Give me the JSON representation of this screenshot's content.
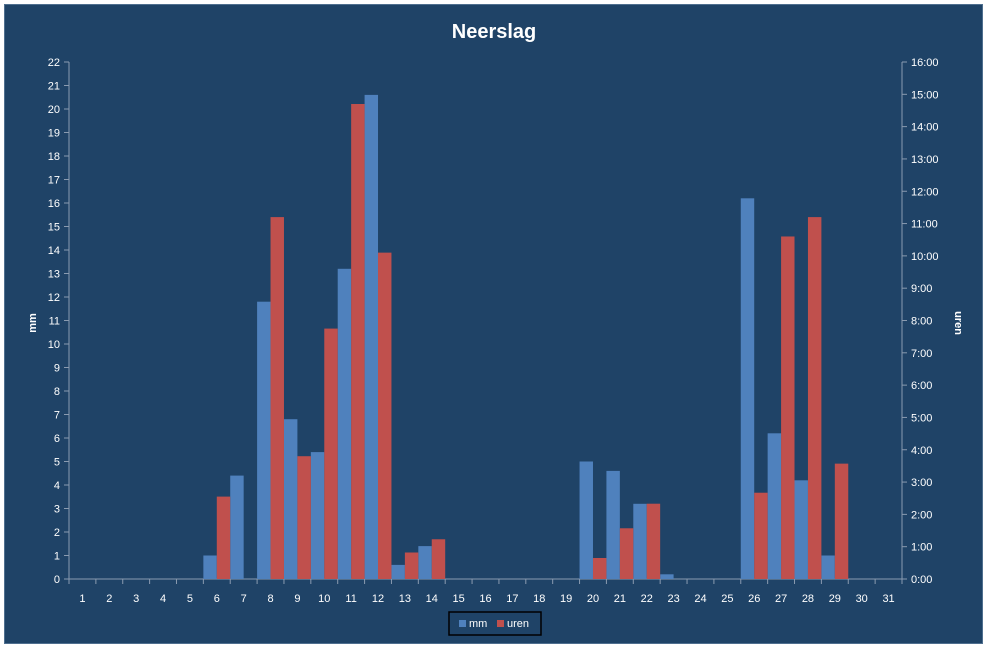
{
  "chart_data": {
    "type": "bar",
    "title": "Neerslag",
    "xlabel": "",
    "ylabel": "mm",
    "y2label": "uren",
    "categories": [
      "1",
      "2",
      "3",
      "4",
      "5",
      "6",
      "7",
      "8",
      "9",
      "10",
      "11",
      "12",
      "13",
      "14",
      "15",
      "16",
      "17",
      "18",
      "19",
      "20",
      "21",
      "22",
      "23",
      "24",
      "25",
      "26",
      "27",
      "28",
      "29",
      "30",
      "31"
    ],
    "ylim": [
      0,
      22
    ],
    "y_ticks": [
      "0",
      "1",
      "2",
      "3",
      "4",
      "5",
      "6",
      "7",
      "8",
      "9",
      "10",
      "11",
      "12",
      "13",
      "14",
      "15",
      "16",
      "17",
      "18",
      "19",
      "20",
      "21",
      "22"
    ],
    "y2lim": [
      0,
      16
    ],
    "y2_ticks": [
      "0:00",
      "1:00",
      "2:00",
      "3:00",
      "4:00",
      "5:00",
      "6:00",
      "7:00",
      "8:00",
      "9:00",
      "10:00",
      "11:00",
      "12:00",
      "13:00",
      "14:00",
      "15:00",
      "16:00"
    ],
    "series": [
      {
        "name": "mm",
        "axis": "left",
        "color": "#4f81bd",
        "values": [
          0,
          0,
          0,
          0,
          0,
          1.0,
          4.4,
          11.8,
          6.8,
          5.4,
          13.2,
          20.6,
          0.6,
          1.4,
          0,
          0,
          0,
          0,
          0,
          5.0,
          4.6,
          3.2,
          0.2,
          0,
          0,
          16.2,
          6.2,
          4.2,
          1.0,
          0,
          0
        ]
      },
      {
        "name": "uren",
        "axis": "right",
        "color": "#c0504d",
        "values": [
          0,
          0,
          0,
          0,
          0,
          2.55,
          0,
          11.2,
          3.8,
          7.75,
          14.7,
          10.1,
          0.82,
          1.23,
          0,
          0,
          0,
          0,
          0,
          0.65,
          1.57,
          2.33,
          0,
          0,
          0,
          2.67,
          10.6,
          11.2,
          3.57,
          0,
          0
        ]
      }
    ],
    "legend_position": "bottom",
    "grid": false
  }
}
